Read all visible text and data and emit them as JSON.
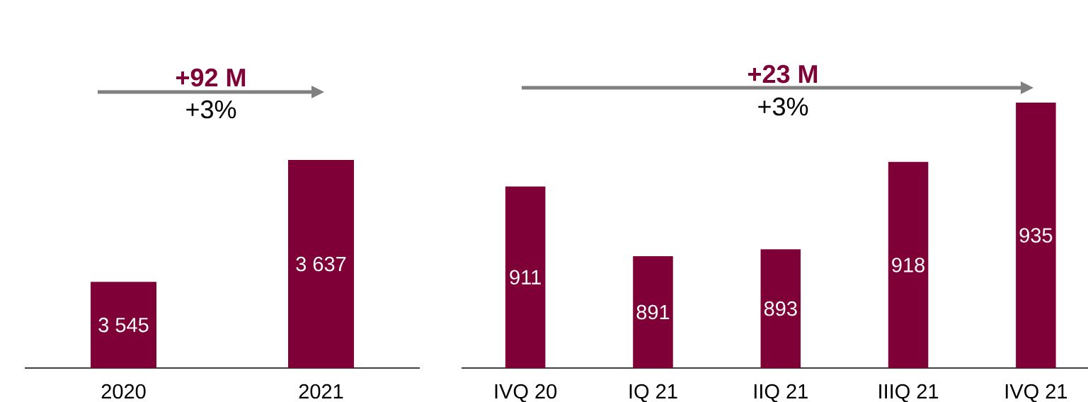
{
  "chart_data": [
    {
      "type": "bar",
      "categories": [
        "2020",
        "2021"
      ],
      "values": [
        3545,
        3637
      ],
      "color": "#7f0037",
      "value_labels": [
        "3 545",
        "3 637"
      ],
      "ylim": [
        3480,
        3637
      ],
      "tick_labels": "x",
      "annotations": [
        "+92 M",
        "+3%"
      ]
    },
    {
      "type": "bar",
      "categories": [
        "IVQ 20",
        "IQ 21",
        "IIQ 21",
        "IIIQ 21",
        "IVQ 21"
      ],
      "values": [
        911,
        891,
        893,
        918,
        935
      ],
      "color": "#7f0037",
      "data_labels": true,
      "ylim": [
        859,
        935
      ],
      "tick_labels": "x",
      "annotations": [
        "+23 M",
        "+3%"
      ]
    }
  ]
}
